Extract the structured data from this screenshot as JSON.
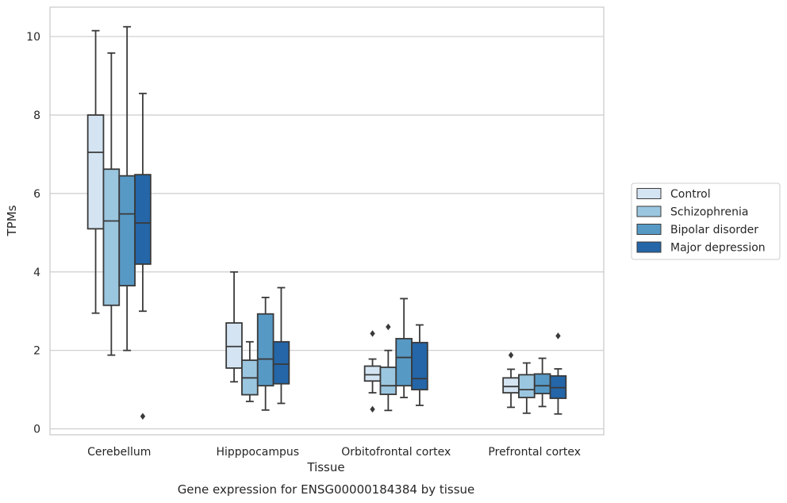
{
  "caption": "Gene expression for ENSG00000184384 by tissue",
  "chart_data": {
    "type": "box",
    "title": "",
    "xlabel": "Tissue",
    "ylabel": "TPMs",
    "ylim": [
      -0.15,
      10.75
    ],
    "yticks": [
      0,
      2,
      4,
      6,
      8,
      10
    ],
    "grid": "horizontal",
    "legend_position": "right",
    "categories": [
      "Cerebellum",
      "Hipppocampus",
      "Orbitofrontal cortex",
      "Prefrontal cortex"
    ],
    "series": [
      {
        "name": "Control",
        "color": "#d4e4f2",
        "boxes": [
          {
            "whisker_low": 2.95,
            "q1": 5.1,
            "median": 7.05,
            "q3": 8.0,
            "whisker_high": 10.15,
            "outliers": []
          },
          {
            "whisker_low": 1.2,
            "q1": 1.55,
            "median": 2.1,
            "q3": 2.7,
            "whisker_high": 4.0,
            "outliers": []
          },
          {
            "whisker_low": 0.92,
            "q1": 1.22,
            "median": 1.38,
            "q3": 1.6,
            "whisker_high": 1.78,
            "outliers": [
              2.43,
              0.5
            ]
          },
          {
            "whisker_low": 0.55,
            "q1": 0.92,
            "median": 1.08,
            "q3": 1.3,
            "whisker_high": 1.52,
            "outliers": [
              1.88
            ]
          }
        ]
      },
      {
        "name": "Schizophrenia",
        "color": "#9bc6df",
        "boxes": [
          {
            "whisker_low": 1.88,
            "q1": 3.15,
            "median": 5.3,
            "q3": 6.62,
            "whisker_high": 9.58,
            "outliers": []
          },
          {
            "whisker_low": 0.7,
            "q1": 0.87,
            "median": 1.3,
            "q3": 1.75,
            "whisker_high": 2.22,
            "outliers": []
          },
          {
            "whisker_low": 0.47,
            "q1": 0.88,
            "median": 1.1,
            "q3": 1.57,
            "whisker_high": 2.0,
            "outliers": [
              2.6
            ]
          },
          {
            "whisker_low": 0.4,
            "q1": 0.8,
            "median": 1.0,
            "q3": 1.38,
            "whisker_high": 1.68,
            "outliers": []
          }
        ]
      },
      {
        "name": "Bipolar disorder",
        "color": "#5799c5",
        "boxes": [
          {
            "whisker_low": 2.0,
            "q1": 3.65,
            "median": 5.48,
            "q3": 6.45,
            "whisker_high": 10.25,
            "outliers": []
          },
          {
            "whisker_low": 0.48,
            "q1": 1.1,
            "median": 1.78,
            "q3": 2.93,
            "whisker_high": 3.35,
            "outliers": []
          },
          {
            "whisker_low": 0.8,
            "q1": 1.1,
            "median": 1.82,
            "q3": 2.3,
            "whisker_high": 3.32,
            "outliers": []
          },
          {
            "whisker_low": 0.57,
            "q1": 0.9,
            "median": 1.1,
            "q3": 1.4,
            "whisker_high": 1.8,
            "outliers": []
          }
        ]
      },
      {
        "name": "Major depression",
        "color": "#2466a8",
        "boxes": [
          {
            "whisker_low": 3.0,
            "q1": 4.2,
            "median": 5.25,
            "q3": 6.48,
            "whisker_high": 8.55,
            "outliers": [
              0.32
            ]
          },
          {
            "whisker_low": 0.65,
            "q1": 1.15,
            "median": 1.65,
            "q3": 2.22,
            "whisker_high": 3.6,
            "outliers": []
          },
          {
            "whisker_low": 0.6,
            "q1": 1.0,
            "median": 1.28,
            "q3": 2.2,
            "whisker_high": 2.65,
            "outliers": []
          },
          {
            "whisker_low": 0.38,
            "q1": 0.78,
            "median": 1.05,
            "q3": 1.35,
            "whisker_high": 1.53,
            "outliers": [
              2.37
            ]
          }
        ]
      }
    ]
  }
}
